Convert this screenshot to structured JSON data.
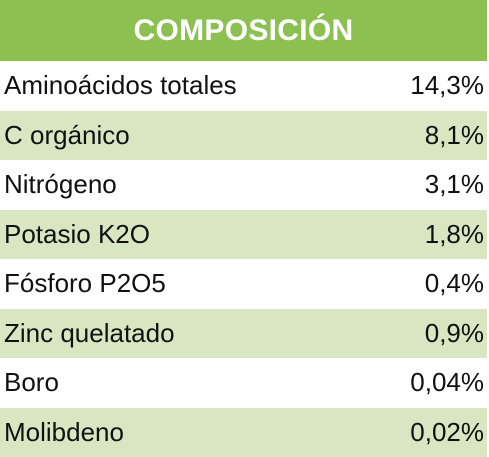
{
  "header": {
    "title": "COMPOSICIÓN"
  },
  "rows": [
    {
      "name": "Aminoácidos totales",
      "value": "14,3%"
    },
    {
      "name": "C orgánico",
      "value": "8,1%"
    },
    {
      "name": "Nitrógeno",
      "value": "3,1%"
    },
    {
      "name": "Potasio K2O",
      "value": "1,8%"
    },
    {
      "name": "Fósforo P2O5",
      "value": "0,4%"
    },
    {
      "name": "Zinc quelatado",
      "value": "0,9%"
    },
    {
      "name": "Boro",
      "value": "0,04%"
    },
    {
      "name": "Molibdeno",
      "value": "0,02%"
    }
  ],
  "colors": {
    "header_bg": "#8cc152",
    "alt_row_bg": "#d8e7c2",
    "header_text": "#ffffff"
  }
}
